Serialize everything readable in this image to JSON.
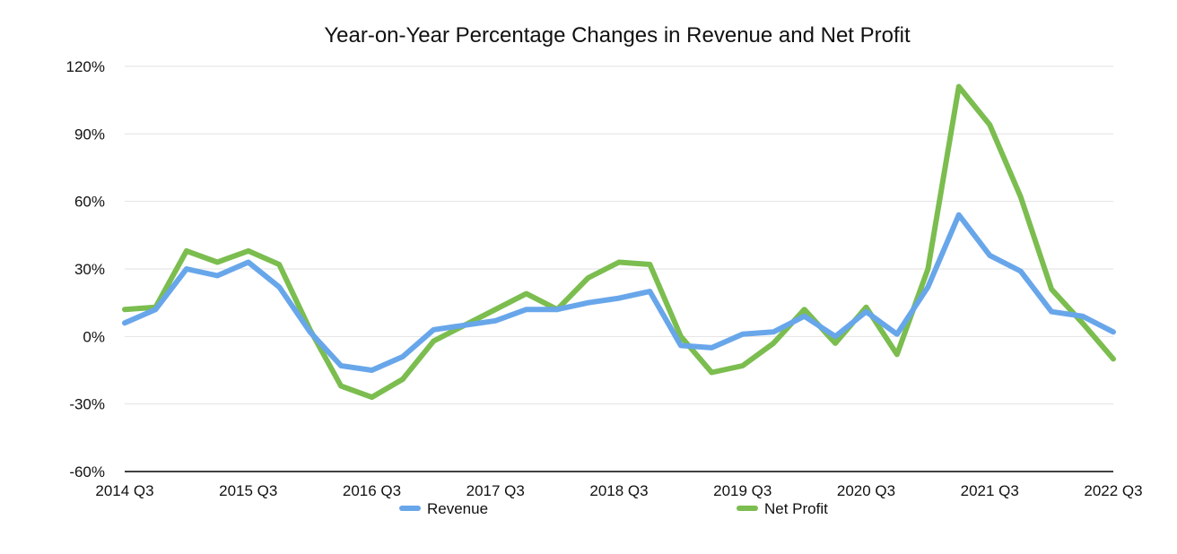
{
  "chart_data": {
    "type": "line",
    "title": "Year-on-Year Percentage Changes in Revenue and Net Profit",
    "xlabel": "",
    "ylabel": "",
    "x": [
      "2014 Q3",
      "2014 Q4",
      "2015 Q1",
      "2015 Q2",
      "2015 Q3",
      "2015 Q4",
      "2016 Q1",
      "2016 Q2",
      "2016 Q3",
      "2016 Q4",
      "2017 Q1",
      "2017 Q2",
      "2017 Q3",
      "2017 Q4",
      "2018 Q1",
      "2018 Q2",
      "2018 Q3",
      "2018 Q4",
      "2019 Q1",
      "2019 Q2",
      "2019 Q3",
      "2019 Q4",
      "2020 Q1",
      "2020 Q2",
      "2020 Q3",
      "2020 Q4",
      "2021 Q1",
      "2021 Q2",
      "2021 Q3",
      "2021 Q4",
      "2022 Q1",
      "2022 Q2",
      "2022 Q3"
    ],
    "x_tick_labels": [
      "2014 Q3",
      "2015 Q3",
      "2016 Q3",
      "2017 Q3",
      "2018 Q3",
      "2019 Q3",
      "2020 Q3",
      "2021 Q3",
      "2022 Q3"
    ],
    "ylim": [
      -60,
      120
    ],
    "y_ticks": [
      -60,
      -30,
      0,
      30,
      60,
      90,
      120
    ],
    "y_tick_labels": [
      "-60%",
      "-30%",
      "0%",
      "30%",
      "60%",
      "90%",
      "120%"
    ],
    "grid": true,
    "legend_position": "bottom",
    "series": [
      {
        "name": "Revenue",
        "color": "#68a6ea",
        "values": [
          6,
          12,
          30,
          27,
          33,
          22,
          2,
          -13,
          -15,
          -9,
          3,
          5,
          7,
          12,
          12,
          15,
          17,
          20,
          -4,
          -5,
          1,
          2,
          9,
          0,
          11,
          1,
          22,
          54,
          36,
          29,
          11,
          9,
          2
        ]
      },
      {
        "name": "Net Profit",
        "color": "#7bbd4f",
        "values": [
          12,
          13,
          38,
          33,
          38,
          32,
          3,
          -22,
          -27,
          -19,
          -2,
          5,
          12,
          19,
          12,
          26,
          33,
          32,
          0,
          -16,
          -13,
          -3,
          12,
          -3,
          13,
          -8,
          30,
          111,
          94,
          62,
          21,
          6,
          -10
        ]
      }
    ]
  }
}
